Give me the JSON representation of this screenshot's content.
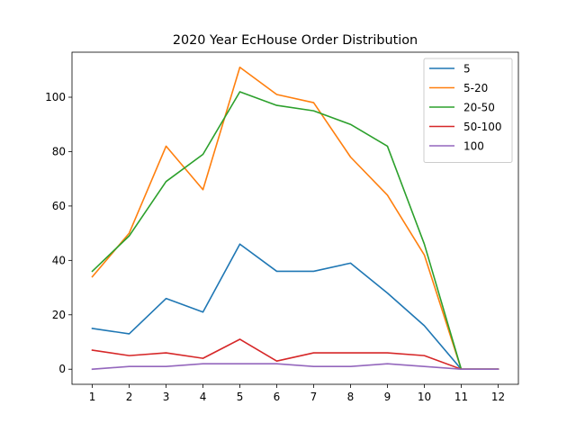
{
  "chart_data": {
    "type": "line",
    "title": "2020 Year EcHouse Order Distribution",
    "xlabel": "",
    "ylabel": "",
    "x": [
      1,
      2,
      3,
      4,
      5,
      6,
      7,
      8,
      9,
      10,
      11,
      12
    ],
    "xlim": [
      0.45,
      12.55
    ],
    "ylim": [
      -5.55,
      116.55
    ],
    "yticks": [
      0,
      20,
      40,
      60,
      80,
      100
    ],
    "grid": false,
    "legend_position": "top-right",
    "series": [
      {
        "name": "5",
        "color": "#1f77b4",
        "values": [
          15,
          13,
          26,
          21,
          46,
          36,
          36,
          39,
          28,
          16,
          0,
          0
        ]
      },
      {
        "name": "5-20",
        "color": "#ff7f0e",
        "values": [
          34,
          50,
          82,
          66,
          111,
          101,
          98,
          78,
          64,
          42,
          0,
          0
        ]
      },
      {
        "name": "20-50",
        "color": "#2ca02c",
        "values": [
          36,
          49,
          69,
          79,
          102,
          97,
          95,
          90,
          82,
          46,
          0,
          0
        ]
      },
      {
        "name": "50-100",
        "color": "#d62728",
        "values": [
          7,
          5,
          6,
          4,
          11,
          3,
          6,
          6,
          6,
          5,
          0,
          0
        ]
      },
      {
        "name": "100",
        "color": "#9467bd",
        "values": [
          0,
          1,
          1,
          2,
          2,
          2,
          1,
          1,
          2,
          1,
          0,
          0
        ]
      }
    ]
  }
}
